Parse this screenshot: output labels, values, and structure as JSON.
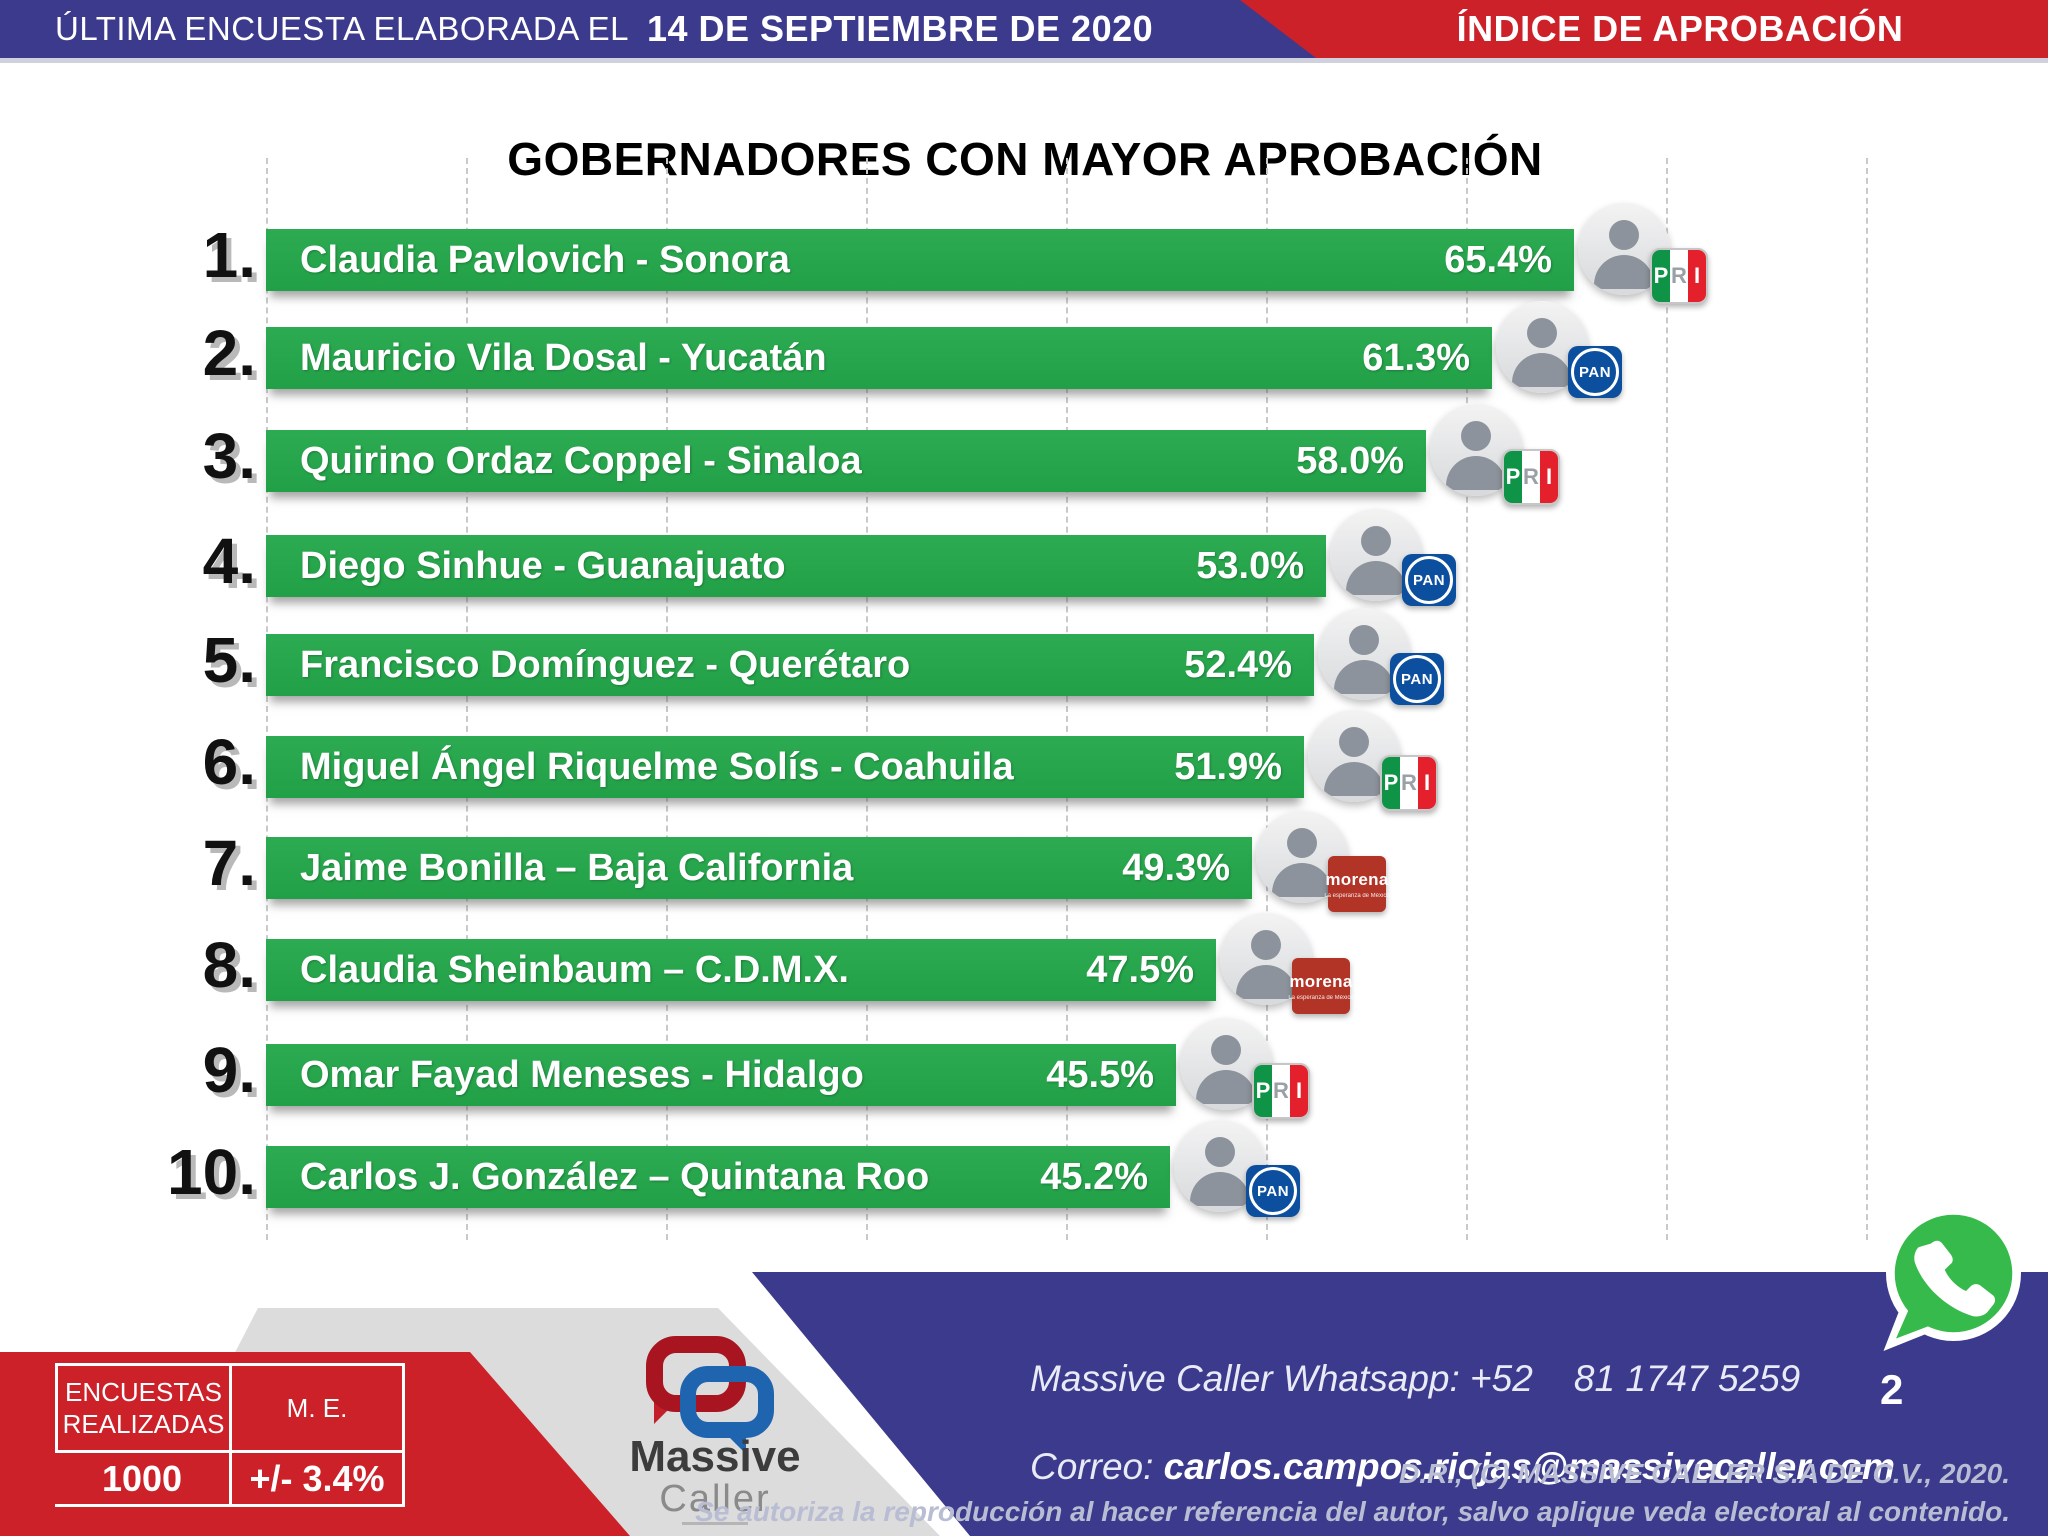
{
  "header": {
    "left_label": "ÚLTIMA ENCUESTA ELABORADA EL",
    "left_date": "14 DE SEPTIEMBRE DE 2020",
    "right_title": "ÍNDICE DE APROBACIÓN"
  },
  "chart_data": {
    "type": "bar",
    "orientation": "horizontal",
    "title": "GOBERNADORES CON MAYOR APROBACIÓN",
    "unit": "%",
    "xlim": [
      0,
      80
    ],
    "gridline_step_pct": 10,
    "grid": "vertical-dashed",
    "bar_color": "#28a44c",
    "categories": [
      "Claudia Pavlovich - Sonora",
      "Mauricio Vila Dosal - Yucatán",
      "Quirino Ordaz Coppel - Sinaloa",
      "Diego Sinhue - Guanajuato",
      "Francisco Domínguez - Querétaro",
      "Miguel Ángel Riquelme Solís - Coahuila",
      "Jaime Bonilla – Baja California",
      "Claudia Sheinbaum – C.D.M.X.",
      "Omar Fayad Meneses - Hidalgo",
      "Carlos J. González – Quintana Roo"
    ],
    "values": [
      65.4,
      61.3,
      58.0,
      53.0,
      52.4,
      51.9,
      49.3,
      47.5,
      45.5,
      45.2
    ],
    "rows": [
      {
        "rank": "1.",
        "name": "Claudia Pavlovich - Sonora",
        "value": 65.4,
        "label": "65.4%",
        "party": "PRI"
      },
      {
        "rank": "2.",
        "name": "Mauricio Vila Dosal - Yucatán",
        "value": 61.3,
        "label": "61.3%",
        "party": "PAN"
      },
      {
        "rank": "3.",
        "name": "Quirino Ordaz Coppel - Sinaloa",
        "value": 58.0,
        "label": "58.0%",
        "party": "PRI"
      },
      {
        "rank": "4.",
        "name": "Diego Sinhue - Guanajuato",
        "value": 53.0,
        "label": "53.0%",
        "party": "PAN"
      },
      {
        "rank": "5.",
        "name": "Francisco Domínguez - Querétaro",
        "value": 52.4,
        "label": "52.4%",
        "party": "PAN"
      },
      {
        "rank": "6.",
        "name": "Miguel Ángel Riquelme Solís - Coahuila",
        "value": 51.9,
        "label": "51.9%",
        "party": "PRI"
      },
      {
        "rank": "7.",
        "name": "Jaime Bonilla – Baja California",
        "value": 49.3,
        "label": "49.3%",
        "party": "MORENA"
      },
      {
        "rank": "8.",
        "name": "Claudia Sheinbaum – C.D.M.X.",
        "value": 47.5,
        "label": "47.5%",
        "party": "MORENA"
      },
      {
        "rank": "9.",
        "name": "Omar Fayad Meneses - Hidalgo",
        "value": 45.5,
        "label": "45.5%",
        "party": "PRI"
      },
      {
        "rank": "10.",
        "name": "Carlos J. González – Quintana Roo",
        "value": 45.2,
        "label": "45.2%",
        "party": "PAN"
      }
    ]
  },
  "parties": {
    "PRI": {
      "letters": [
        "P",
        "R",
        "I"
      ],
      "colors": [
        "#0e9347",
        "#ffffff",
        "#e3202b"
      ]
    },
    "PAN": {
      "label": "PAN",
      "color": "#0b4f9e"
    },
    "MORENA": {
      "label": "morena",
      "tagline": "La esperanza de México",
      "color": "#b13427"
    }
  },
  "stats": {
    "header1": "ENCUESTAS REALIZADAS",
    "header2": "M. E.",
    "value1": "1000",
    "value2": "+/- 3.4%"
  },
  "footer": {
    "whatsapp_line": "Massive Caller Whatsapp: +52    81 1747 5259",
    "correo_label": "Correo: ",
    "email": "carlos.campos.riojas@massivecaller.com",
    "page_number": "2",
    "copyright_line1": "D.R., (C) MASSIVE CALLER S.A DE C.V., 2020.",
    "copyright_line2": "Se autoriza la reproducción al hacer referencia del autor, salvo aplique veda electoral al contenido.",
    "logo_word1": "Massive",
    "logo_word2": "Caller"
  },
  "colors": {
    "header_blue": "#3c3a8c",
    "accent_red": "#cd2129",
    "bar_green": "#28a44c",
    "footer_blue": "#3c3a8c",
    "gray_panel": "#dcdcdc",
    "whatsapp_green": "#36ba4b"
  }
}
